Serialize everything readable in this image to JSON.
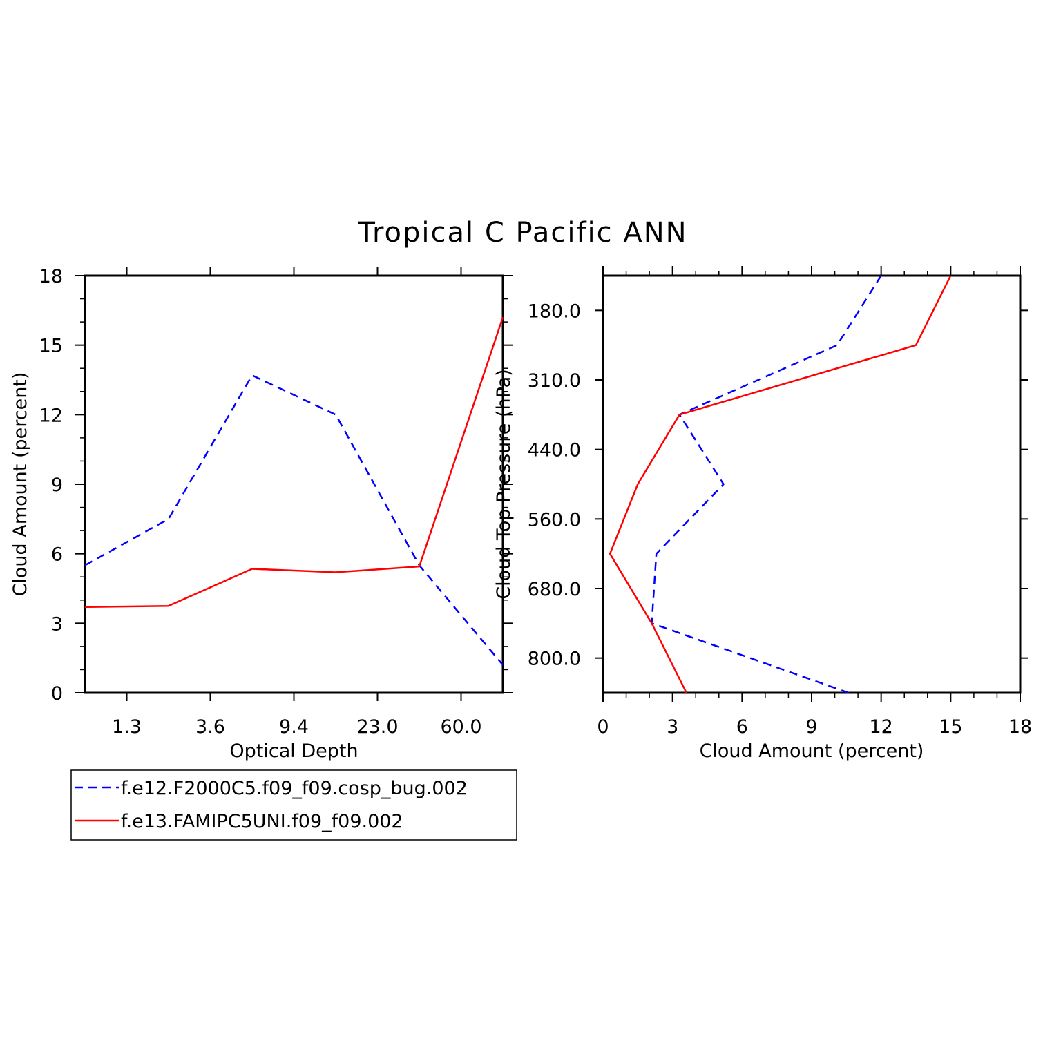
{
  "title": "Tropical C Pacific ANN",
  "colors": {
    "series1": "#0000ff",
    "series2": "#ff0000",
    "axis": "#000000"
  },
  "legend": {
    "entries": [
      {
        "label": "f.e12.F2000C5.f09_f09.cosp_bug.002",
        "color": "#0000ff",
        "style": "dashed"
      },
      {
        "label": "f.e13.FAMIPC5UNI.f09_f09.002",
        "color": "#ff0000",
        "style": "solid"
      }
    ],
    "placement": "bottom-left"
  },
  "chart_data": [
    {
      "type": "line",
      "xlabel": "Optical Depth",
      "ylabel": "Cloud Amount (percent)",
      "ylim": [
        0,
        18
      ],
      "yticks": [
        "0",
        "3",
        "6",
        "9",
        "12",
        "15",
        "18"
      ],
      "xticks": [
        "1.3",
        "3.6",
        "9.4",
        "23.0",
        "60.0"
      ],
      "x_bins": 5,
      "series": [
        {
          "name": "f.e12.F2000C5.f09_f09.cosp_bug.002",
          "x": [
            0,
            1,
            2,
            3,
            4,
            5
          ],
          "y": [
            5.5,
            7.5,
            13.7,
            12.0,
            5.5,
            1.2
          ]
        },
        {
          "name": "f.e13.FAMIPC5UNI.f09_f09.002",
          "x": [
            0,
            1,
            2,
            3,
            4,
            5
          ],
          "y": [
            3.7,
            3.75,
            5.35,
            5.2,
            5.45,
            16.2
          ]
        }
      ]
    },
    {
      "type": "line",
      "xlabel": "Cloud Amount (percent)",
      "ylabel": "Cloud Top Pressure (hPa)",
      "xlim": [
        0,
        18
      ],
      "xticks": [
        "0",
        "3",
        "6",
        "9",
        "12",
        "15",
        "18"
      ],
      "yticks": [
        "180.0",
        "310.0",
        "440.0",
        "560.0",
        "680.0",
        "800.0"
      ],
      "y_bins": 6,
      "y_inverted": true,
      "series": [
        {
          "name": "f.e12.F2000C5.f09_f09.cosp_bug.002",
          "x": [
            12.0,
            10.1,
            3.3,
            5.2,
            2.3,
            2.1,
            10.6
          ],
          "y": [
            0,
            1,
            2,
            3,
            4,
            5,
            6
          ]
        },
        {
          "name": "f.e13.FAMIPC5UNI.f09_f09.002",
          "x": [
            15.0,
            13.5,
            3.3,
            1.5,
            0.3,
            2.1,
            3.6
          ],
          "y": [
            0,
            1,
            2,
            3,
            4,
            5,
            6
          ]
        }
      ]
    }
  ]
}
